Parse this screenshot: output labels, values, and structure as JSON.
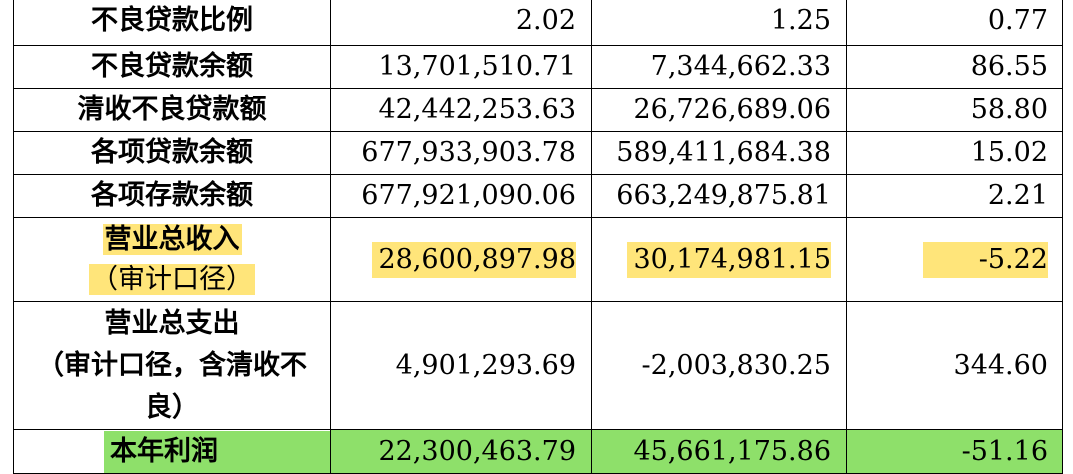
{
  "table": {
    "rows": [
      {
        "label": "不良贷款比例",
        "v1": "2.02",
        "v2": "1.25",
        "v3": "0.77"
      },
      {
        "label": "不良贷款余额",
        "v1": "13,701,510.71",
        "v2": "7,344,662.33",
        "v3": "86.55"
      },
      {
        "label": "清收不良贷款额",
        "v1": "42,442,253.63",
        "v2": "26,726,689.06",
        "v3": "58.80"
      },
      {
        "label": "各项贷款余额",
        "v1": "677,933,903.78",
        "v2": "589,411,684.38",
        "v3": "15.02"
      },
      {
        "label": "各项存款余额",
        "v1": "677,921,090.06",
        "v2": "663,249,875.81",
        "v3": "2.21"
      }
    ],
    "revenue": {
      "label_line1": "营业总收入",
      "label_line2": "（审计口径）",
      "v1": "28,600,897.98",
      "v2": "30,174,981.15",
      "v3": "-5.22"
    },
    "expense": {
      "label_line1": "营业总支出",
      "label_line2": "（审计口径，含清收不",
      "label_line3": "良）",
      "v1": "4,901,293.69",
      "v2": "-2,003,830.25",
      "v3": "344.60"
    },
    "profit": {
      "label": "本年利润",
      "v1": "22,300,463.79",
      "v2": "45,661,175.86",
      "v3": "-51.16"
    }
  },
  "colors": {
    "highlight_yellow": "#ffe57a",
    "highlight_green": "#8ee06a"
  }
}
